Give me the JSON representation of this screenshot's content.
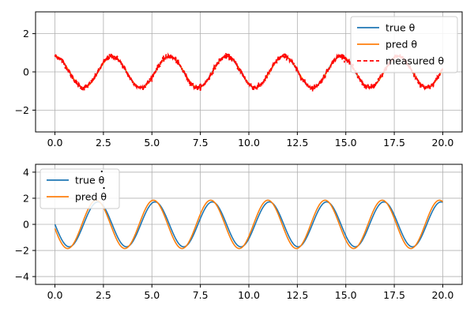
{
  "chart_data": [
    {
      "type": "line",
      "title": "",
      "xlabel": "",
      "ylabel": "",
      "xlim": [
        -1.0,
        21.0
      ],
      "ylim": [
        -3.14,
        3.14
      ],
      "xticks": [
        0.0,
        2.5,
        5.0,
        7.5,
        10.0,
        12.5,
        15.0,
        17.5,
        20.0
      ],
      "xtick_labels": [
        "0.0",
        "2.5",
        "5.0",
        "7.5",
        "10.0",
        "12.5",
        "15.0",
        "17.5",
        "20.0"
      ],
      "yticks": [
        -2,
        0,
        2
      ],
      "ytick_labels": [
        "−2",
        "0",
        "2"
      ],
      "grid": true,
      "legend_position": "top-right",
      "legend": [
        {
          "label": "true θ",
          "color": "#1f77b4",
          "style": "solid"
        },
        {
          "label": "pred θ",
          "color": "#ff7f0e",
          "style": "solid"
        },
        {
          "label": "measured θ",
          "color": "#ff0000",
          "style": "dashed"
        }
      ],
      "series": [
        {
          "name": "true θ",
          "color": "#1f77b4",
          "style": "solid",
          "function": {
            "amplitude": 0.82,
            "period": 2.95,
            "phase_deg": 90,
            "offset": 0
          }
        },
        {
          "name": "pred θ",
          "color": "#ff7f0e",
          "style": "solid",
          "function": {
            "amplitude": 0.82,
            "period": 2.95,
            "phase_deg": 88,
            "offset": 0
          }
        },
        {
          "name": "measured θ",
          "color": "#ff0000",
          "style": "dashed",
          "function": {
            "amplitude": 0.82,
            "period": 2.95,
            "phase_deg": 90,
            "offset": 0
          },
          "noise_std": 0.07
        }
      ],
      "x_range": [
        0,
        20
      ]
    },
    {
      "type": "line",
      "title": "",
      "xlabel": "",
      "ylabel": "",
      "xlim": [
        -1.0,
        21.0
      ],
      "ylim": [
        -4.6,
        4.6
      ],
      "xticks": [
        0.0,
        2.5,
        5.0,
        7.5,
        10.0,
        12.5,
        15.0,
        17.5,
        20.0
      ],
      "xtick_labels": [
        "0.0",
        "2.5",
        "5.0",
        "7.5",
        "10.0",
        "12.5",
        "15.0",
        "17.5",
        "20.0"
      ],
      "yticks": [
        -4,
        -2,
        0,
        2,
        4
      ],
      "ytick_labels": [
        "−4",
        "−2",
        "0",
        "2",
        "4"
      ],
      "grid": true,
      "legend_position": "top-left",
      "legend": [
        {
          "label": "true θ",
          "color": "#1f77b4",
          "style": "solid",
          "dot": true
        },
        {
          "label": "pred θ",
          "color": "#ff7f0e",
          "style": "solid",
          "dot": true
        }
      ],
      "series": [
        {
          "name": "true θ̇",
          "color": "#1f77b4",
          "style": "solid",
          "function": {
            "amplitude": 1.72,
            "period": 2.95,
            "phase_deg": 180,
            "offset": 0
          }
        },
        {
          "name": "pred θ̇",
          "color": "#ff7f0e",
          "style": "solid",
          "function": {
            "amplitude": 1.85,
            "period": 2.95,
            "phase_deg": 190,
            "offset": 0
          }
        }
      ],
      "x_range": [
        0,
        20
      ]
    }
  ]
}
